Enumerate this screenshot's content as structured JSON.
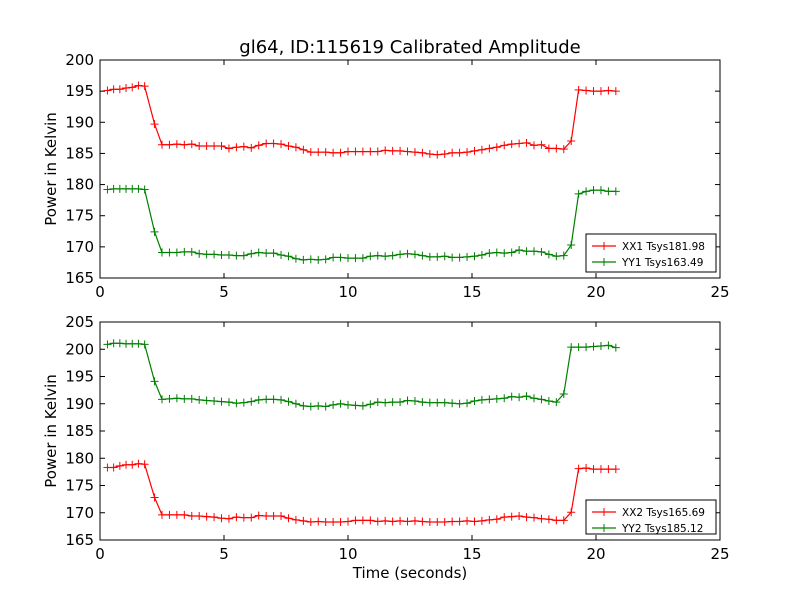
{
  "figure": {
    "title": "gl64, ID:115619 Calibrated Amplitude"
  },
  "chart_data": [
    {
      "type": "line",
      "title": "gl64, ID:115619 Calibrated Amplitude",
      "xlabel": "",
      "ylabel": "Power in Kelvin",
      "xlim": [
        0,
        25
      ],
      "ylim": [
        165,
        200
      ],
      "xticks": [
        0,
        5,
        10,
        15,
        20,
        25
      ],
      "yticks": [
        165,
        170,
        175,
        180,
        185,
        190,
        195,
        200
      ],
      "grid": false,
      "legend": "lower-right",
      "series": [
        {
          "name": "XX1 Tsys181.98",
          "color": "#ff0000",
          "x": [
            0.3,
            0.55,
            0.8,
            1.05,
            1.3,
            1.55,
            1.8,
            2.2,
            2.5,
            2.8,
            3.1,
            3.4,
            3.7,
            4.0,
            4.3,
            4.6,
            4.9,
            5.2,
            5.5,
            5.8,
            6.1,
            6.4,
            6.7,
            7.0,
            7.3,
            7.6,
            7.9,
            8.2,
            8.5,
            8.8,
            9.1,
            9.4,
            9.7,
            10.0,
            10.3,
            10.6,
            10.9,
            11.2,
            11.5,
            11.8,
            12.1,
            12.4,
            12.7,
            13.0,
            13.3,
            13.6,
            13.9,
            14.2,
            14.5,
            14.8,
            15.1,
            15.4,
            15.7,
            16.0,
            16.3,
            16.6,
            16.9,
            17.2,
            17.5,
            17.8,
            18.1,
            18.4,
            18.7,
            19.0,
            19.3,
            19.6,
            19.9,
            20.2,
            20.5,
            20.8
          ],
          "y": [
            195.1,
            195.3,
            195.3,
            195.5,
            195.6,
            195.9,
            195.8,
            189.7,
            186.4,
            186.4,
            186.5,
            186.4,
            186.5,
            186.2,
            186.2,
            186.2,
            186.2,
            185.8,
            186.0,
            186.1,
            185.9,
            186.3,
            186.6,
            186.6,
            186.5,
            186.2,
            186.0,
            185.6,
            185.2,
            185.2,
            185.2,
            185.1,
            185.1,
            185.3,
            185.3,
            185.3,
            185.3,
            185.3,
            185.5,
            185.4,
            185.4,
            185.3,
            185.2,
            185.1,
            184.9,
            184.8,
            184.9,
            185.1,
            185.1,
            185.2,
            185.4,
            185.6,
            185.8,
            186.0,
            186.3,
            186.5,
            186.6,
            186.7,
            186.3,
            186.4,
            185.8,
            185.8,
            185.7,
            187.0,
            195.2,
            195.1,
            195.0,
            195.0,
            195.1,
            195.0
          ]
        },
        {
          "name": "YY1 Tsys163.49",
          "color": "#008000",
          "x": [
            0.3,
            0.55,
            0.8,
            1.05,
            1.3,
            1.55,
            1.8,
            2.2,
            2.5,
            2.8,
            3.1,
            3.4,
            3.7,
            4.0,
            4.3,
            4.6,
            4.9,
            5.2,
            5.5,
            5.8,
            6.1,
            6.4,
            6.7,
            7.0,
            7.3,
            7.6,
            7.9,
            8.2,
            8.5,
            8.8,
            9.1,
            9.4,
            9.7,
            10.0,
            10.3,
            10.6,
            10.9,
            11.2,
            11.5,
            11.8,
            12.1,
            12.4,
            12.7,
            13.0,
            13.3,
            13.6,
            13.9,
            14.2,
            14.5,
            14.8,
            15.1,
            15.4,
            15.7,
            16.0,
            16.3,
            16.6,
            16.9,
            17.2,
            17.5,
            17.8,
            18.1,
            18.4,
            18.7,
            19.0,
            19.3,
            19.6,
            19.9,
            20.2,
            20.5,
            20.8
          ],
          "y": [
            179.2,
            179.3,
            179.3,
            179.3,
            179.3,
            179.3,
            179.2,
            172.4,
            169.1,
            169.1,
            169.1,
            169.2,
            169.2,
            168.9,
            168.8,
            168.8,
            168.7,
            168.7,
            168.6,
            168.6,
            168.9,
            169.1,
            169.0,
            169.0,
            168.7,
            168.5,
            168.1,
            167.9,
            168.0,
            167.9,
            168.0,
            168.3,
            168.3,
            168.2,
            168.2,
            168.2,
            168.5,
            168.6,
            168.5,
            168.6,
            168.8,
            168.9,
            168.8,
            168.6,
            168.4,
            168.4,
            168.5,
            168.3,
            168.3,
            168.4,
            168.5,
            168.7,
            169.0,
            169.1,
            169.0,
            169.1,
            169.5,
            169.3,
            169.3,
            169.2,
            168.8,
            168.5,
            168.6,
            170.3,
            178.5,
            178.9,
            179.1,
            179.1,
            178.9,
            178.9
          ]
        }
      ]
    },
    {
      "type": "line",
      "title": "",
      "xlabel": "Time (seconds)",
      "ylabel": "Power in Kelvin",
      "xlim": [
        0,
        25
      ],
      "ylim": [
        165,
        205
      ],
      "xticks": [
        0,
        5,
        10,
        15,
        20,
        25
      ],
      "yticks": [
        165,
        170,
        175,
        180,
        185,
        190,
        195,
        200,
        205
      ],
      "grid": false,
      "legend": "lower-right",
      "series": [
        {
          "name": "XX2 Tsys165.69",
          "color": "#ff0000",
          "x": [
            0.3,
            0.55,
            0.8,
            1.05,
            1.3,
            1.55,
            1.8,
            2.2,
            2.5,
            2.8,
            3.1,
            3.4,
            3.7,
            4.0,
            4.3,
            4.6,
            4.9,
            5.2,
            5.5,
            5.8,
            6.1,
            6.4,
            6.7,
            7.0,
            7.3,
            7.6,
            7.9,
            8.2,
            8.5,
            8.8,
            9.1,
            9.4,
            9.7,
            10.0,
            10.3,
            10.6,
            10.9,
            11.2,
            11.5,
            11.8,
            12.1,
            12.4,
            12.7,
            13.0,
            13.3,
            13.6,
            13.9,
            14.2,
            14.5,
            14.8,
            15.1,
            15.4,
            15.7,
            16.0,
            16.3,
            16.6,
            16.9,
            17.2,
            17.5,
            17.8,
            18.1,
            18.4,
            18.7,
            19.0,
            19.3,
            19.6,
            19.9,
            20.2,
            20.5,
            20.8
          ],
          "y": [
            178.3,
            178.3,
            178.6,
            178.8,
            178.8,
            179.0,
            178.9,
            172.8,
            169.6,
            169.6,
            169.6,
            169.6,
            169.4,
            169.4,
            169.3,
            169.2,
            169.0,
            168.9,
            169.2,
            169.1,
            169.1,
            169.5,
            169.4,
            169.4,
            169.4,
            169.0,
            168.7,
            168.5,
            168.3,
            168.4,
            168.3,
            168.3,
            168.3,
            168.4,
            168.6,
            168.6,
            168.6,
            168.4,
            168.5,
            168.4,
            168.5,
            168.4,
            168.5,
            168.4,
            168.3,
            168.3,
            168.3,
            168.4,
            168.4,
            168.5,
            168.4,
            168.5,
            168.7,
            168.8,
            169.2,
            169.3,
            169.4,
            169.2,
            169.1,
            168.9,
            168.8,
            168.6,
            168.6,
            170.1,
            178.1,
            178.2,
            178.0,
            178.0,
            178.0,
            178.0
          ]
        },
        {
          "name": "YY2 Tsys185.12",
          "color": "#008000",
          "x": [
            0.3,
            0.55,
            0.8,
            1.05,
            1.3,
            1.55,
            1.8,
            2.2,
            2.5,
            2.8,
            3.1,
            3.4,
            3.7,
            4.0,
            4.3,
            4.6,
            4.9,
            5.2,
            5.5,
            5.8,
            6.1,
            6.4,
            6.7,
            7.0,
            7.3,
            7.6,
            7.9,
            8.2,
            8.5,
            8.8,
            9.1,
            9.4,
            9.7,
            10.0,
            10.3,
            10.6,
            10.9,
            11.2,
            11.5,
            11.8,
            12.1,
            12.4,
            12.7,
            13.0,
            13.3,
            13.6,
            13.9,
            14.2,
            14.5,
            14.8,
            15.1,
            15.4,
            15.7,
            16.0,
            16.3,
            16.6,
            16.9,
            17.2,
            17.5,
            17.8,
            18.1,
            18.4,
            18.7,
            19.0,
            19.3,
            19.6,
            19.9,
            20.2,
            20.5,
            20.8
          ],
          "y": [
            200.9,
            201.1,
            201.1,
            201.0,
            201.0,
            201.0,
            200.9,
            194.1,
            190.8,
            190.9,
            191.0,
            190.9,
            190.9,
            190.7,
            190.6,
            190.5,
            190.4,
            190.3,
            190.1,
            190.2,
            190.4,
            190.7,
            190.8,
            190.8,
            190.7,
            190.4,
            190.0,
            189.6,
            189.5,
            189.6,
            189.5,
            189.8,
            190.0,
            189.8,
            189.7,
            189.6,
            189.9,
            190.3,
            190.2,
            190.3,
            190.3,
            190.6,
            190.5,
            190.3,
            190.2,
            190.2,
            190.2,
            190.1,
            190.0,
            190.1,
            190.5,
            190.7,
            190.8,
            190.9,
            191.0,
            191.3,
            191.2,
            191.4,
            191.0,
            190.8,
            190.5,
            190.3,
            191.8,
            200.4,
            200.4,
            200.4,
            200.5,
            200.6,
            200.7,
            200.3
          ]
        }
      ]
    }
  ]
}
